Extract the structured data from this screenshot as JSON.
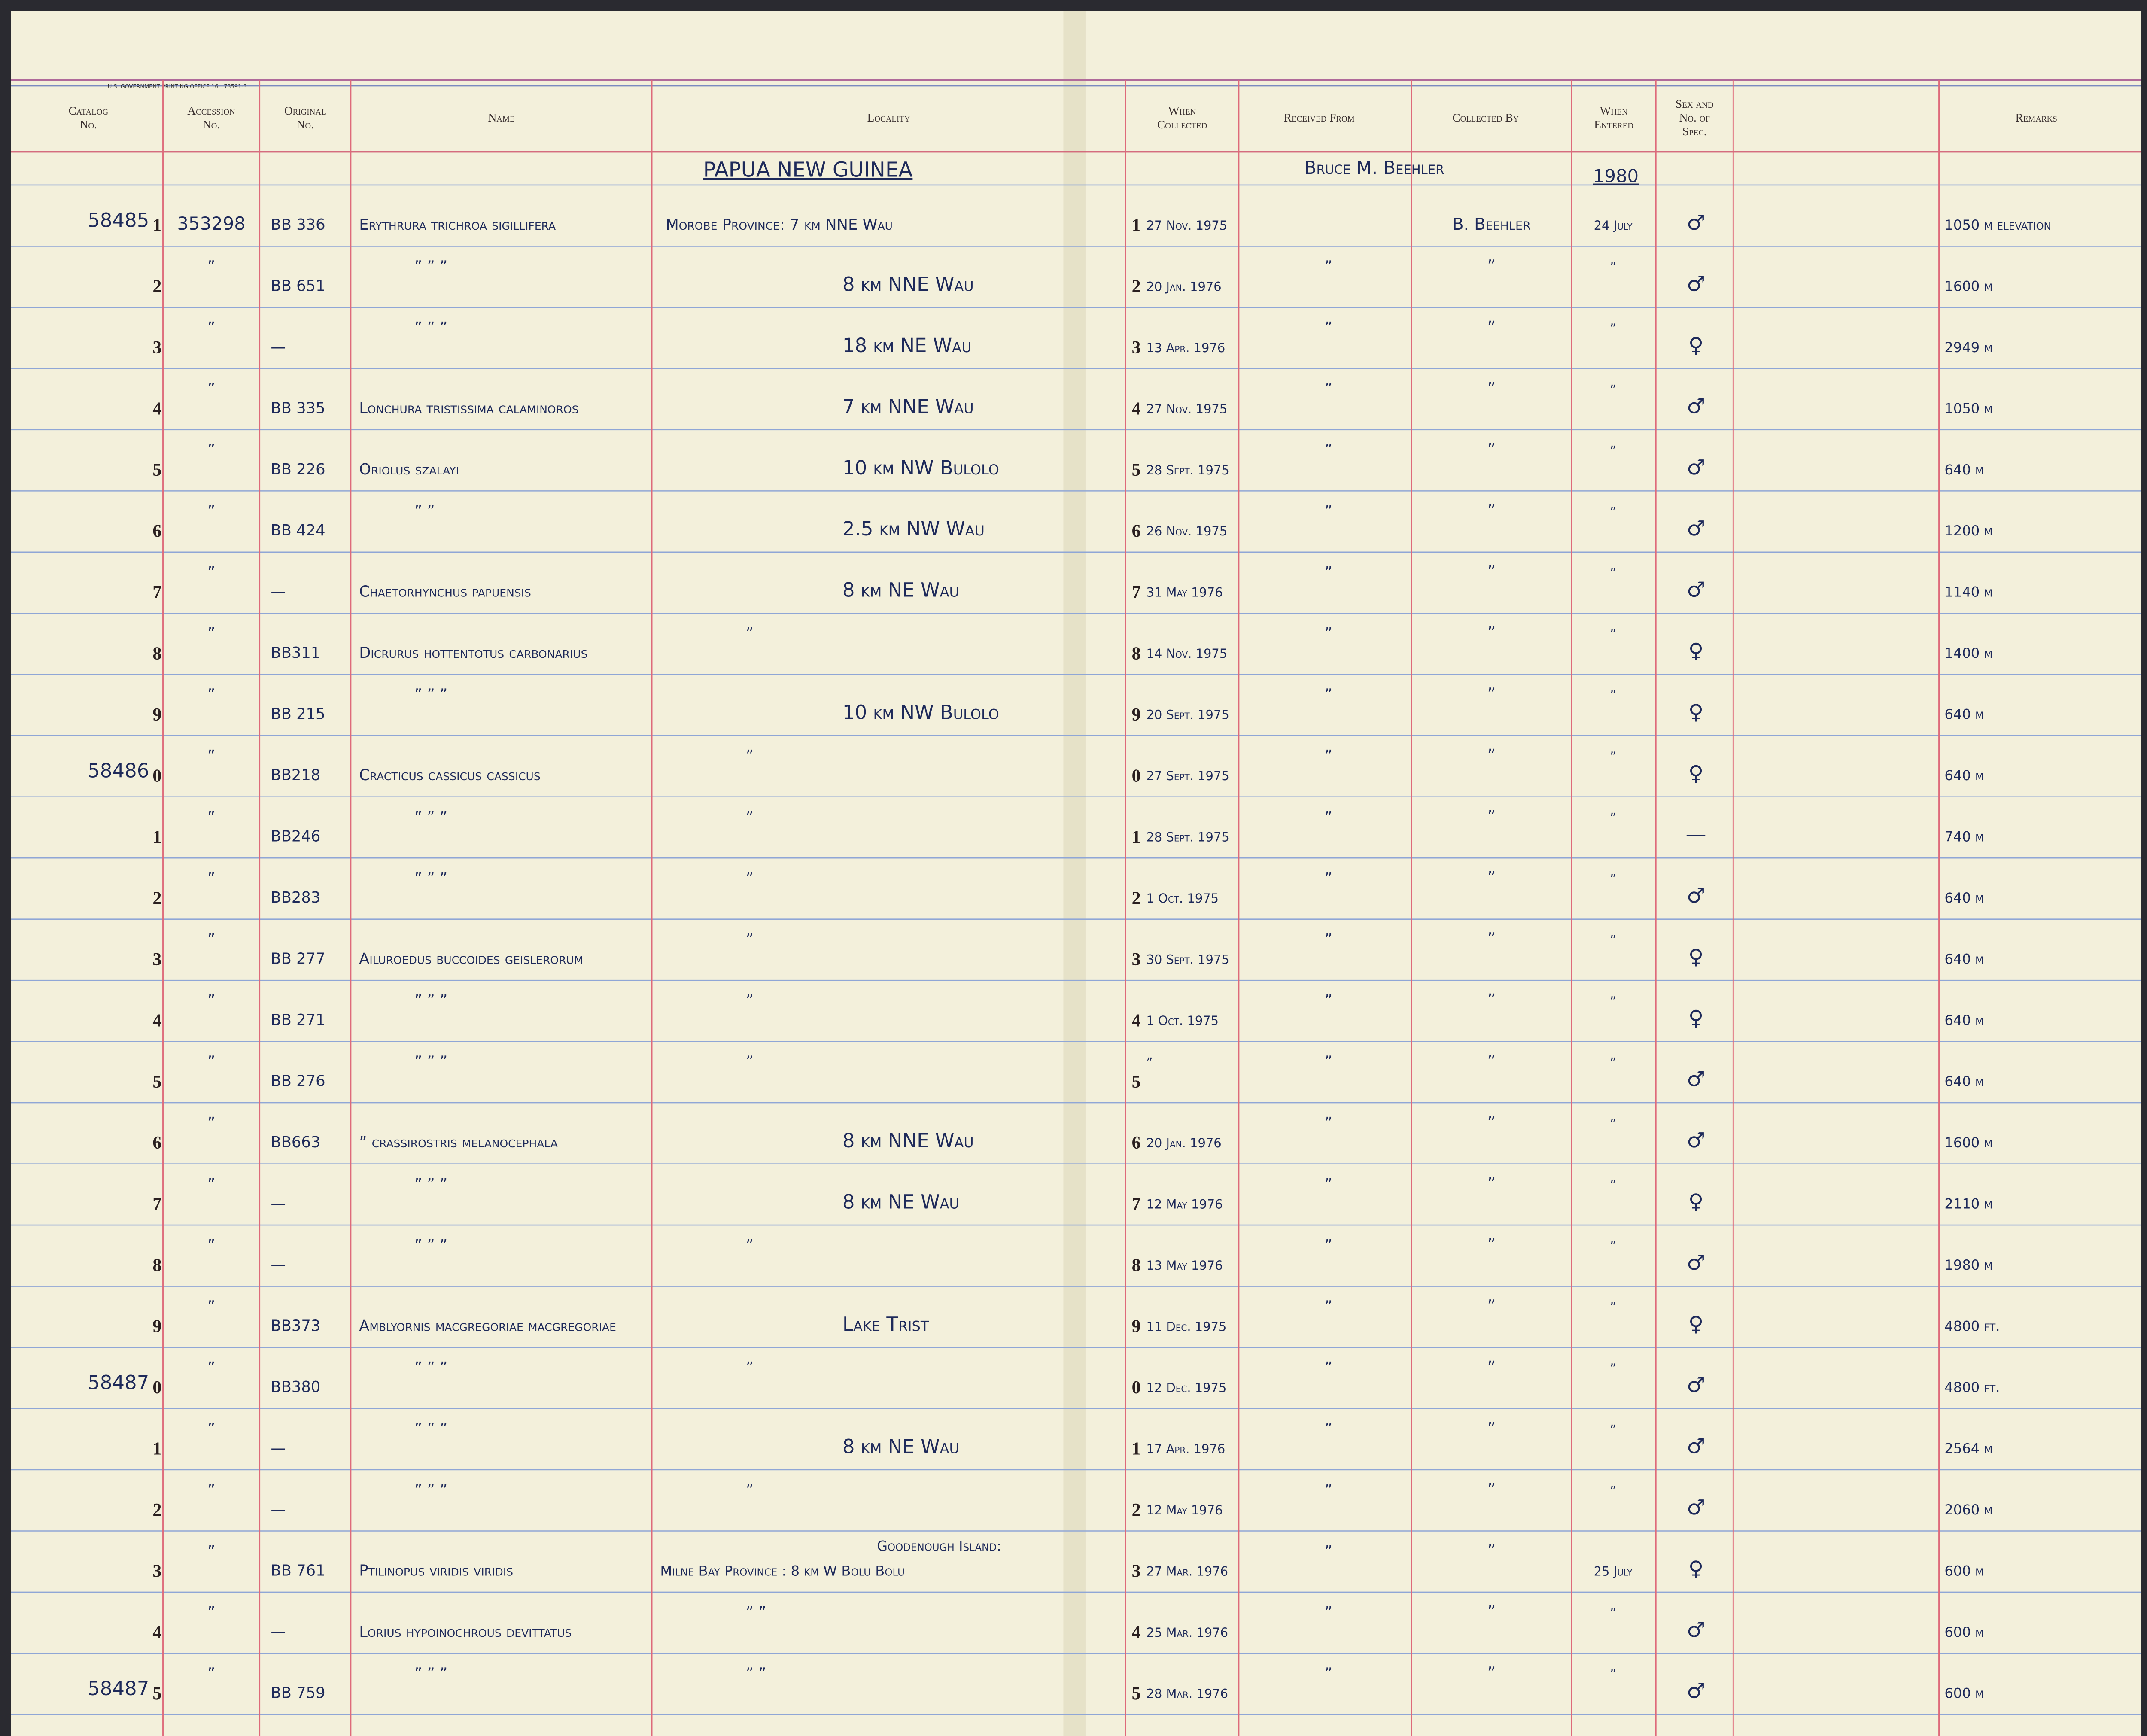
{
  "printer": "U.S. GOVERNMENT PRINTING OFFICE 16—73591-3",
  "header": {
    "columns": [
      [
        "Catalog",
        "No."
      ],
      [
        "Accession",
        "No."
      ],
      [
        "Original",
        "No."
      ],
      [
        "Name"
      ],
      [
        "Locality"
      ],
      [
        "When",
        "Collected"
      ],
      [
        "Received From—"
      ],
      [
        "Collected By—"
      ],
      [
        "When",
        "Entered"
      ],
      [
        "Sex and",
        "No. of",
        "Spec."
      ],
      [
        "Remarks"
      ]
    ]
  },
  "region": "PAPUA NEW GUINEA",
  "received_from": "Bruce M. Beehler",
  "year_entered": "1980",
  "rows": [
    [
      "58485",
      "1",
      "353298",
      "BB 336",
      "Erythrura trichroa sigillifera",
      "Morobe Province: 7 km NNE Wau",
      "27 Nov. 1975",
      null,
      "B. Beehler",
      "24 July",
      "♂",
      "1050 m elevation"
    ],
    [
      null,
      "2",
      "”",
      "BB 651",
      "”   ”   ”",
      "8 km NNE Wau",
      "20 Jan. 1976",
      "”",
      "”",
      "”",
      "♂",
      "1600 m"
    ],
    [
      null,
      "3",
      "”",
      "—",
      "”   ”   ”",
      "18 km NE Wau",
      "13 Apr. 1976",
      "”",
      "”",
      "”",
      "♀",
      "2949 m"
    ],
    [
      null,
      "4",
      "”",
      "BB 335",
      "Lonchura tristissima calaminoros",
      "7 km NNE Wau",
      "27 Nov. 1975",
      "”",
      "”",
      "”",
      "♂",
      "1050 m"
    ],
    [
      null,
      "5",
      "”",
      "BB 226",
      "Oriolus szalayi",
      "10 km NW Bulolo",
      "28 Sept. 1975",
      "”",
      "”",
      "”",
      "♂",
      "640 m"
    ],
    [
      null,
      "6",
      "”",
      "BB 424",
      "”   ”",
      "2.5 km NW Wau",
      "26 Nov. 1975",
      "”",
      "”",
      "”",
      "♂",
      "1200 m"
    ],
    [
      null,
      "7",
      "”",
      "—",
      "Chaetorhynchus papuensis",
      "8 km NE Wau",
      "31 May 1976",
      "”",
      "”",
      "”",
      "♂",
      "1140 m"
    ],
    [
      null,
      "8",
      "”",
      "BB311",
      "Dicrurus hottentotus carbonarius",
      "”",
      "14 Nov. 1975",
      "”",
      "”",
      "”",
      "♀",
      "1400 m"
    ],
    [
      null,
      "9",
      "”",
      "BB 215",
      "”   ”   ”",
      "10 km NW Bulolo",
      "20 Sept. 1975",
      "”",
      "”",
      "”",
      "♀",
      "640 m"
    ],
    [
      "58486",
      "0",
      "”",
      "BB218",
      "Cracticus cassicus cassicus",
      "”",
      "27 Sept. 1975",
      "”",
      "”",
      "”",
      "♀",
      "640 m"
    ],
    [
      null,
      "1",
      "”",
      "BB246",
      "”   ”   ”",
      "”",
      "28 Sept. 1975",
      "”",
      "”",
      "”",
      "—",
      "740 m"
    ],
    [
      null,
      "2",
      "”",
      "BB283",
      "”   ”   ”",
      "”",
      "1 Oct. 1975",
      "”",
      "”",
      "”",
      "♂",
      "640 m"
    ],
    [
      null,
      "3",
      "”",
      "BB 277",
      "Ailuroedus buccoides geislerorum",
      "”",
      "30 Sept. 1975",
      "”",
      "”",
      "”",
      "♀",
      "640 m"
    ],
    [
      null,
      "4",
      "”",
      "BB 271",
      "”   ”   ”",
      "”",
      "1 Oct. 1975",
      "”",
      "”",
      "”",
      "♀",
      "640 m"
    ],
    [
      null,
      "5",
      "”",
      "BB 276",
      "”   ”   ”",
      "”",
      "”",
      "”",
      "”",
      "”",
      "♂",
      "640 m"
    ],
    [
      null,
      "6",
      "”",
      "BB663",
      "”  crassirostris melanocephala",
      "8 km NNE Wau",
      "20 Jan. 1976",
      "”",
      "”",
      "”",
      "♂",
      "1600 m"
    ],
    [
      null,
      "7",
      "”",
      "—",
      "”   ”   ”",
      "8 km NE Wau",
      "12 May 1976",
      "”",
      "”",
      "”",
      "♀",
      "2110 m"
    ],
    [
      null,
      "8",
      "”",
      "—",
      "”   ”   ”",
      "”",
      "13 May 1976",
      "”",
      "”",
      "”",
      "♂",
      "1980 m"
    ],
    [
      null,
      "9",
      "”",
      "BB373",
      "Amblyornis macgregoriae macgregoriae",
      "Lake Trist",
      "11 Dec. 1975",
      "”",
      "”",
      "”",
      "♀",
      "4800 ft."
    ],
    [
      "58487",
      "0",
      "”",
      "BB380",
      "”   ”   ”",
      "”",
      "12 Dec. 1975",
      "”",
      "”",
      "”",
      "♂",
      "4800 ft."
    ],
    [
      null,
      "1",
      "”",
      "—",
      "”   ”   ”",
      "8 km NE Wau",
      "17 Apr. 1976",
      "”",
      "”",
      "”",
      "♂",
      "2564 m"
    ],
    [
      null,
      "2",
      "”",
      "—",
      "”   ”   ”",
      "”",
      "12 May 1976",
      "”",
      "”",
      "”",
      "♂",
      "2060 m"
    ],
    [
      null,
      "3",
      "”",
      "BB 761",
      "Ptilinopus viridis viridis",
      [
        "Goodenough Island:",
        "Milne Bay Province :  8 km W Bolu Bolu"
      ],
      "27 Mar. 1976",
      "”",
      "”",
      "25 July",
      "♀",
      "600 m"
    ],
    [
      null,
      "4",
      "”",
      "—",
      "Lorius hypoinochrous devittatus",
      "”   ”",
      "25 Mar. 1976",
      "”",
      "”",
      "”",
      "♂",
      "600 m"
    ],
    [
      "58487",
      "5",
      "”",
      "BB 759",
      "”   ”   ”",
      "”   ”",
      "28 Mar. 1976",
      "”",
      "”",
      "”",
      "♂",
      "600 m"
    ]
  ]
}
